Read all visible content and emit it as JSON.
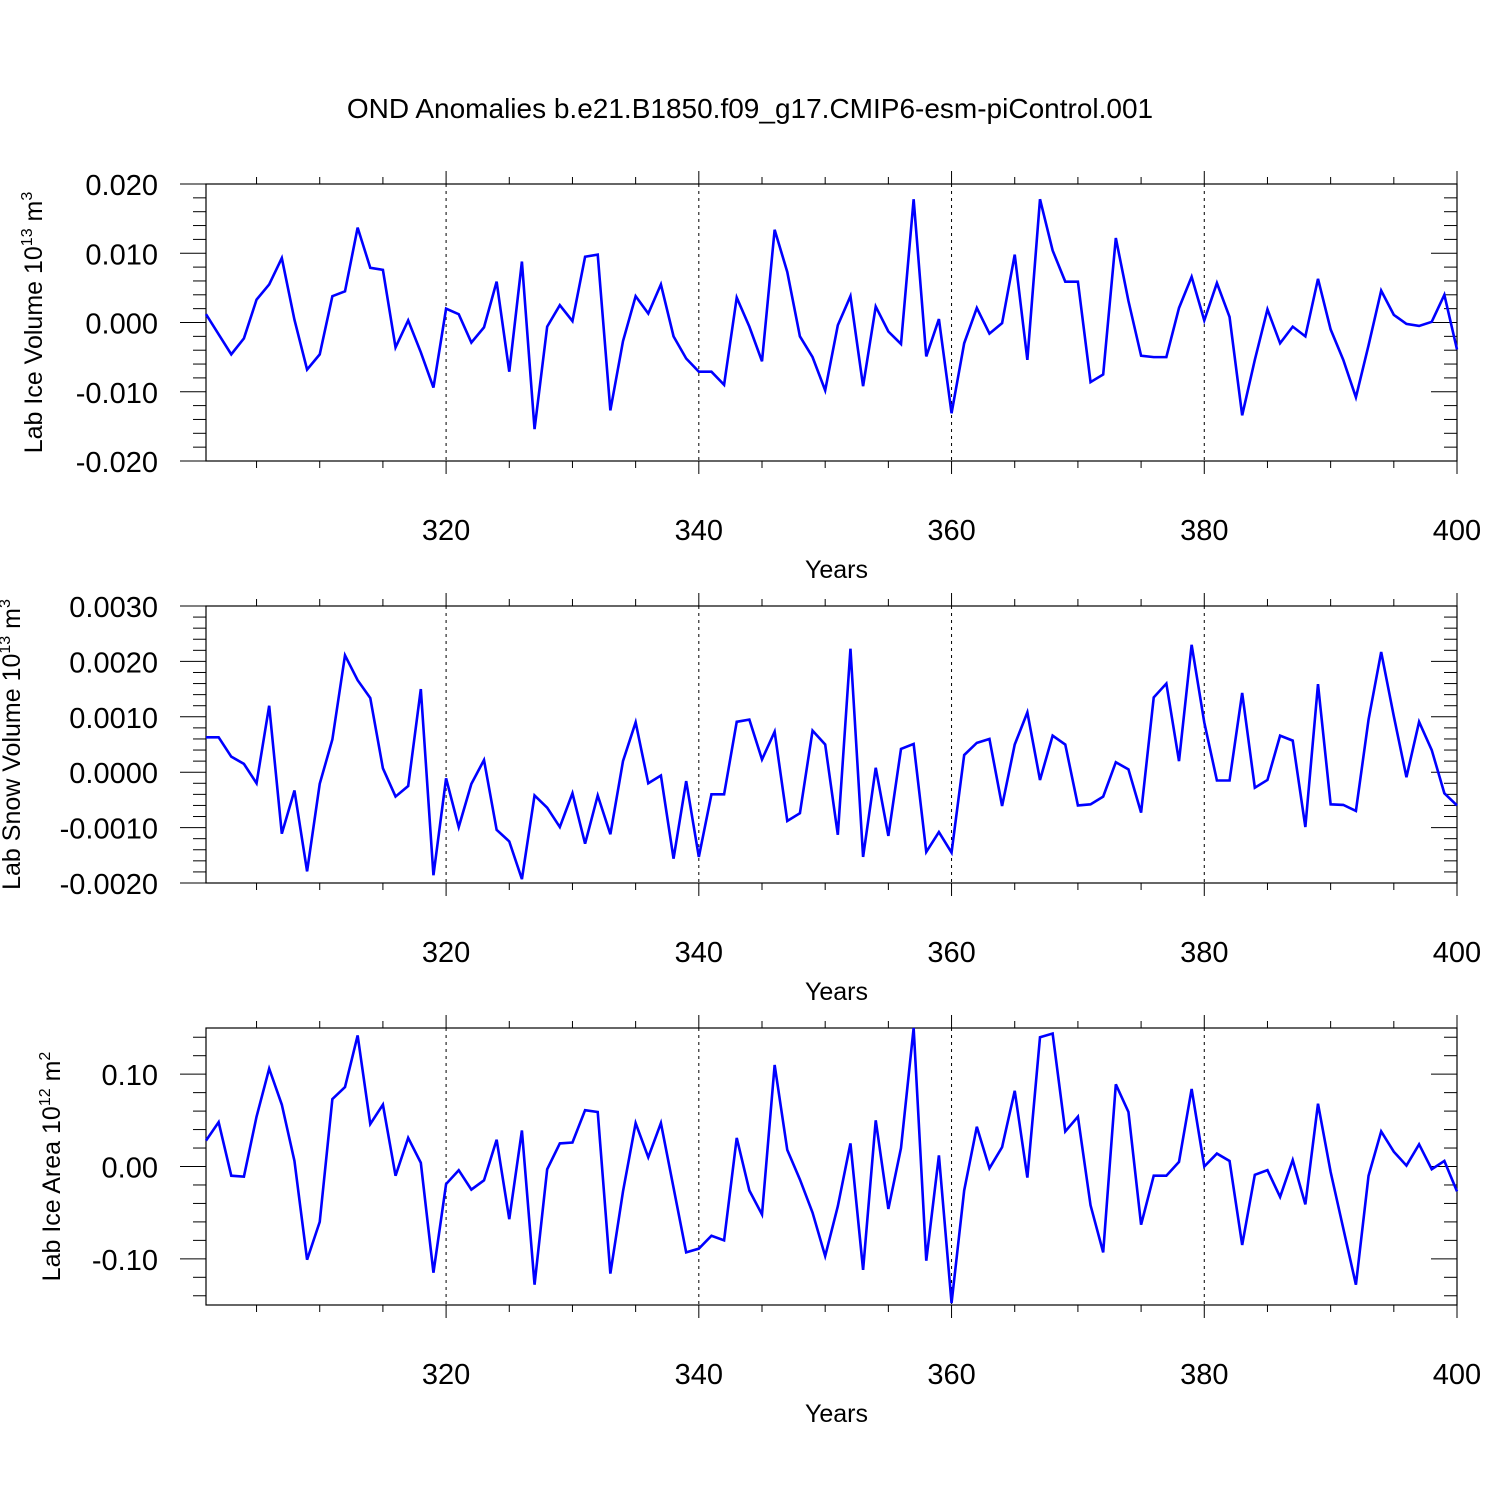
{
  "figure": {
    "title": "OND Anomalies b.e21.B1850.f09_g17.CMIP6-esm-piControl.001"
  },
  "chart_data": [
    {
      "type": "line",
      "ylabel": "Lab Ice Volume 10",
      "ylabel_exp": "13",
      "ylabel_unit": " m",
      "ylabel_unit_exp": "3",
      "xlabel": "Years",
      "xlim": [
        301,
        400
      ],
      "ylim": [
        -0.02,
        0.02
      ],
      "yticks": [
        -0.02,
        -0.01,
        0,
        0.01,
        0.02
      ],
      "ytick_labels": [
        "-0.020",
        "-0.010",
        "0.000",
        "0.010",
        "0.020"
      ],
      "xticks": [
        320,
        340,
        360,
        380,
        400
      ],
      "xtick_labels": [
        "320",
        "340",
        "360",
        "380",
        "400"
      ],
      "series": [
        {
          "name": "Lab Ice Volume",
          "color": "#0000ff",
          "x_start": 301,
          "values": [
            0.0012,
            -0.0017,
            -0.0046,
            -0.0023,
            0.0033,
            0.0055,
            0.0093,
            0.0004,
            -0.0068,
            -0.0046,
            0.0038,
            0.0045,
            0.0137,
            0.0079,
            0.0076,
            -0.0036,
            0.0003,
            -0.0043,
            -0.0094,
            0.002,
            0.0012,
            -0.0029,
            -0.0007,
            0.0059,
            -0.0071,
            0.0088,
            -0.0154,
            -0.0006,
            0.0025,
            0.0002,
            0.0095,
            0.0098,
            -0.0127,
            -0.0027,
            0.0038,
            0.0013,
            0.0055,
            -0.002,
            -0.0052,
            -0.0071,
            -0.0071,
            -0.009,
            0.0036,
            -0.0006,
            -0.0056,
            0.0134,
            0.0073,
            -0.002,
            -0.005,
            -0.0098,
            -0.0004,
            0.0038,
            -0.0092,
            0.0023,
            -0.0013,
            -0.0031,
            0.0178,
            -0.0049,
            0.0005,
            -0.0131,
            -0.003,
            0.0021,
            -0.0016,
            -0.0001,
            0.0098,
            -0.0054,
            0.0178,
            0.0104,
            0.0059,
            0.0059,
            -0.0086,
            -0.0075,
            0.0122,
            0.0031,
            -0.0048,
            -0.005,
            -0.005,
            0.0021,
            0.0066,
            0.0003,
            0.0057,
            0.0008,
            -0.0134,
            -0.0054,
            0.0019,
            -0.003,
            -0.0006,
            -0.002,
            0.0063,
            -0.001,
            -0.0054,
            -0.0108,
            -0.0033,
            0.0046,
            0.0011,
            -0.0002,
            -0.0005,
            0.0001,
            0.004,
            -0.0039
          ]
        }
      ]
    },
    {
      "type": "line",
      "ylabel": "Lab Snow Volume 10",
      "ylabel_exp": "13",
      "ylabel_unit": " m",
      "ylabel_unit_exp": "3",
      "xlabel": "Years",
      "xlim": [
        301,
        400
      ],
      "ylim": [
        -0.002,
        0.003
      ],
      "yticks": [
        -0.002,
        -0.001,
        0,
        0.001,
        0.002,
        0.003
      ],
      "ytick_labels": [
        "-0.0020",
        "-0.0010",
        "0.0000",
        "0.0010",
        "0.0020",
        "0.0030"
      ],
      "xticks": [
        320,
        340,
        360,
        380,
        400
      ],
      "xtick_labels": [
        "320",
        "340",
        "360",
        "380",
        "400"
      ],
      "series": [
        {
          "name": "Lab Snow Volume",
          "color": "#0000ff",
          "x_start": 301,
          "values": [
            0.00063,
            0.00063,
            0.00028,
            0.00015,
            -0.0002,
            0.0012,
            -0.00111,
            -0.00033,
            -0.00179,
            -0.00021,
            0.00059,
            0.00211,
            0.00166,
            0.00134,
            7e-05,
            -0.00044,
            -0.00025,
            0.0015,
            -0.00186,
            -0.00011,
            -0.00099,
            -0.00021,
            0.00022,
            -0.00104,
            -0.00125,
            -0.00193,
            -0.00042,
            -0.00064,
            -0.00099,
            -0.00038,
            -0.00129,
            -0.00042,
            -0.00112,
            0.0002,
            0.0009,
            -0.0002,
            -6e-05,
            -0.00156,
            -0.00016,
            -0.00153,
            -0.0004,
            -0.0004,
            0.00091,
            0.00095,
            0.00023,
            0.00073,
            -0.00088,
            -0.00074,
            0.00075,
            0.0005,
            -0.00113,
            0.00223,
            -0.00153,
            8e-05,
            -0.00115,
            0.00042,
            0.00051,
            -0.00144,
            -0.00108,
            -0.00145,
            0.00031,
            0.00053,
            0.0006,
            -0.00061,
            0.0005,
            0.00108,
            -0.00014,
            0.00066,
            0.0005,
            -0.0006,
            -0.00058,
            -0.00044,
            0.00018,
            5e-05,
            -0.00073,
            0.00135,
            0.0016,
            0.0002,
            0.0023,
            0.0009,
            -0.00015,
            -0.00015,
            0.00143,
            -0.00028,
            -0.00014,
            0.00066,
            0.00057,
            -0.00099,
            0.00159,
            -0.00058,
            -0.00059,
            -0.0007,
            0.00095,
            0.00217,
            0.00101,
            -9e-05,
            0.00091,
            0.0004,
            -0.00038,
            -0.0006
          ]
        }
      ]
    },
    {
      "type": "line",
      "ylabel": "Lab Ice Area 10",
      "ylabel_exp": "12",
      "ylabel_unit": " m",
      "ylabel_unit_exp": "2",
      "xlabel": "Years",
      "xlim": [
        301,
        400
      ],
      "ylim": [
        -0.15,
        0.15
      ],
      "yticks": [
        -0.1,
        0,
        0.1
      ],
      "ytick_labels": [
        "-0.10",
        "0.00",
        "0.10"
      ],
      "xticks": [
        320,
        340,
        360,
        380,
        400
      ],
      "xtick_labels": [
        "320",
        "340",
        "360",
        "380",
        "400"
      ],
      "series": [
        {
          "name": "Lab Ice Area",
          "color": "#0000ff",
          "x_start": 301,
          "values": [
            0.028,
            0.048,
            -0.01,
            -0.011,
            0.054,
            0.106,
            0.067,
            0.006,
            -0.101,
            -0.06,
            0.073,
            0.086,
            0.142,
            0.046,
            0.067,
            -0.01,
            0.031,
            0.004,
            -0.115,
            -0.019,
            -0.004,
            -0.025,
            -0.015,
            0.029,
            -0.057,
            0.039,
            -0.128,
            -0.003,
            0.025,
            0.026,
            0.061,
            0.059,
            -0.116,
            -0.027,
            0.047,
            0.01,
            0.047,
            -0.023,
            -0.093,
            -0.089,
            -0.075,
            -0.08,
            0.031,
            -0.026,
            -0.052,
            0.11,
            0.018,
            -0.014,
            -0.05,
            -0.097,
            -0.043,
            0.025,
            -0.112,
            0.05,
            -0.046,
            0.02,
            0.15,
            -0.102,
            0.012,
            -0.148,
            -0.026,
            0.043,
            -0.002,
            0.021,
            0.082,
            -0.012,
            0.14,
            0.144,
            0.038,
            0.054,
            -0.042,
            -0.093,
            0.089,
            0.059,
            -0.063,
            -0.01,
            -0.01,
            0.005,
            0.084,
            0.0,
            0.014,
            0.006,
            -0.085,
            -0.009,
            -0.004,
            -0.033,
            0.007,
            -0.041,
            0.068,
            -0.006,
            -0.067,
            -0.128,
            -0.01,
            0.038,
            0.016,
            0.001,
            0.024,
            -0.003,
            0.006,
            -0.027
          ]
        }
      ]
    }
  ]
}
